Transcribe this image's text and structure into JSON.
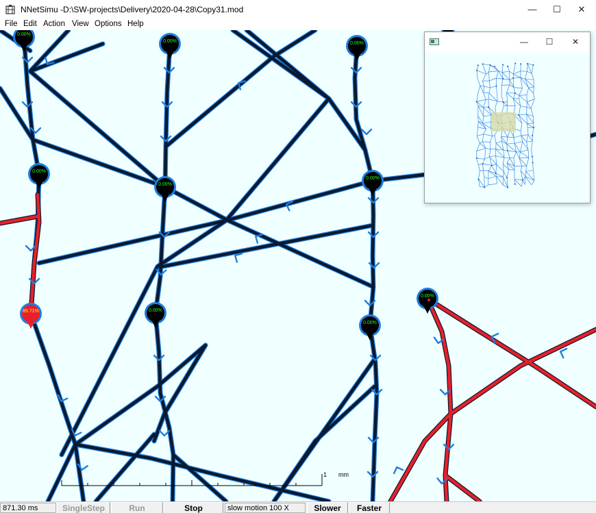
{
  "window": {
    "title": "NNetSimu -D:\\SW-projects\\Delivery\\2020-04-28\\Copy31.mod",
    "minimize": "—",
    "maximize": "☐",
    "close": "✕"
  },
  "menu": {
    "file": "File",
    "edit": "Edit",
    "action": "Action",
    "view": "View",
    "options": "Options",
    "help": "Help"
  },
  "canvas": {
    "colors": {
      "background": "#f0ffff",
      "axon": "#0a1930",
      "axon_edge": "#1e7fe0",
      "active": "#e8202a",
      "node_label_idle": "#22ff22",
      "node_label_active": "#ffff40",
      "arrow": "#1e7fe0"
    },
    "nodes": [
      {
        "id": "n1",
        "label": "0.00%",
        "active": false
      },
      {
        "id": "n2",
        "label": "0.00%",
        "active": false
      },
      {
        "id": "n3",
        "label": "0.00%",
        "active": false
      },
      {
        "id": "n4",
        "label": "0.00%",
        "active": false
      },
      {
        "id": "n5",
        "label": "0.00%",
        "active": false
      },
      {
        "id": "n6",
        "label": "0.00%",
        "active": false
      },
      {
        "id": "n7",
        "label": "85.71%",
        "active": true
      },
      {
        "id": "n8",
        "label": "0.00%",
        "active": false
      },
      {
        "id": "n9",
        "label": "0.00%",
        "active": false
      },
      {
        "id": "n10",
        "label": "0.00%",
        "active": false
      }
    ],
    "scale_label": "1",
    "scale_unit": "mm"
  },
  "overview": {
    "minimize": "—",
    "maximize": "☐",
    "close": "✕",
    "colors": {
      "network": "#3a8ae8",
      "viewport": "#d8dca8"
    }
  },
  "status": {
    "time": "871.30 ms",
    "single_step": "SingleStep",
    "run": "Run",
    "stop": "Stop",
    "speed": "slow motion 100 X",
    "slower": "Slower",
    "faster": "Faster"
  }
}
